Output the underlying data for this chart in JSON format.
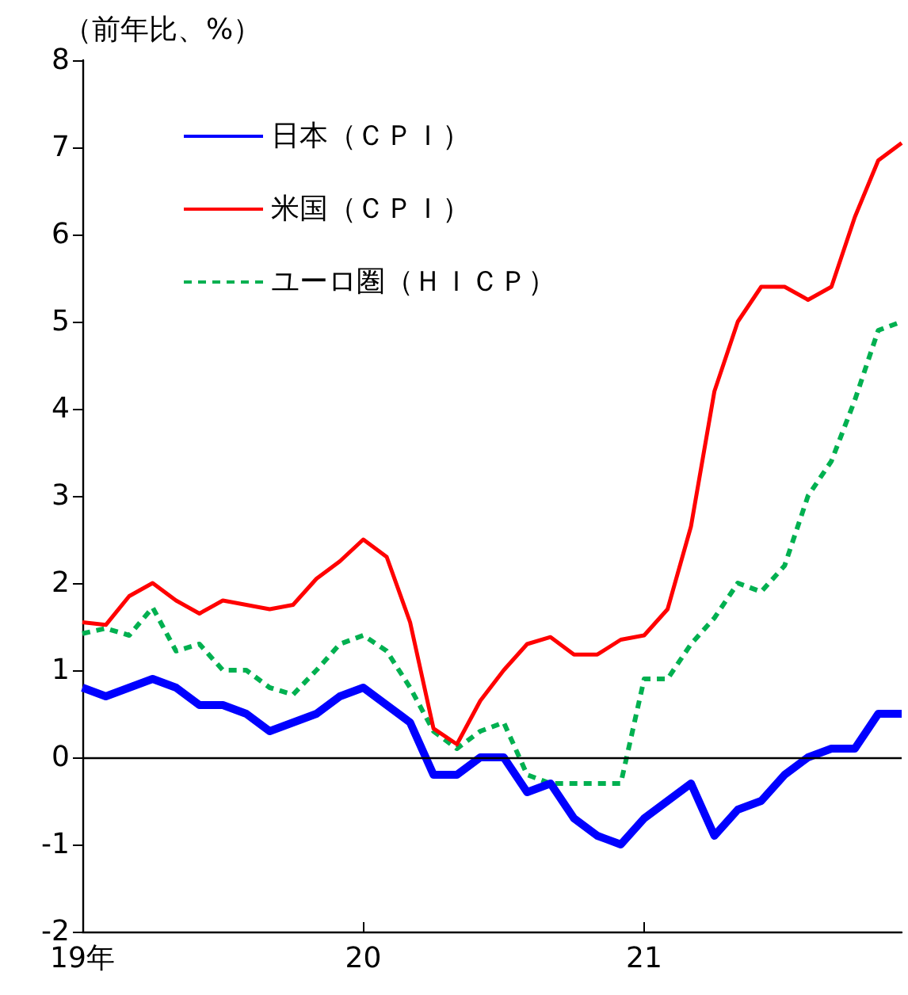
{
  "chart_data": {
    "type": "line",
    "ylabel": "（前年比、%）",
    "categories": [
      "19年",
      null,
      null,
      null,
      null,
      null,
      null,
      null,
      null,
      null,
      null,
      null,
      "20",
      null,
      null,
      null,
      null,
      null,
      null,
      null,
      null,
      null,
      null,
      null,
      "21",
      null,
      null,
      null,
      null,
      null,
      null,
      null,
      null,
      null,
      null,
      null
    ],
    "series": [
      {
        "name": "日本（ＣＰＩ）",
        "color": "#0000ff",
        "line_style": "solid",
        "values": [
          0.8,
          0.7,
          0.8,
          0.9,
          0.8,
          0.6,
          0.6,
          0.5,
          0.3,
          0.4,
          0.5,
          0.7,
          0.8,
          0.6,
          0.4,
          -0.2,
          -0.2,
          0.0,
          0.0,
          -0.4,
          -0.3,
          -0.7,
          -0.9,
          -1.0,
          -0.7,
          -0.5,
          -0.3,
          -0.9,
          -0.6,
          -0.5,
          -0.2,
          0.0,
          0.1,
          0.1,
          0.5,
          0.5
        ]
      },
      {
        "name": "米国（ＣＰＩ）",
        "color": "#ff0000",
        "line_style": "solid",
        "values": [
          1.55,
          1.52,
          1.85,
          2.0,
          1.8,
          1.65,
          1.8,
          1.75,
          1.7,
          1.75,
          2.05,
          2.25,
          2.5,
          2.3,
          1.55,
          0.33,
          0.15,
          0.65,
          1.0,
          1.3,
          1.38,
          1.18,
          1.18,
          1.35,
          1.4,
          1.7,
          2.65,
          4.2,
          5.0,
          5.4,
          5.4,
          5.25,
          5.4,
          6.2,
          6.85,
          7.05
        ]
      },
      {
        "name": "ユーロ圏（ＨＩＣＰ）",
        "color": "#00b050",
        "line_style": "dashed",
        "values": [
          1.42,
          1.48,
          1.4,
          1.72,
          1.22,
          1.3,
          1.0,
          1.0,
          0.8,
          0.72,
          1.0,
          1.3,
          1.4,
          1.22,
          0.8,
          0.3,
          0.1,
          0.3,
          0.4,
          -0.2,
          -0.3,
          -0.3,
          -0.3,
          -0.3,
          0.9,
          0.9,
          1.3,
          1.6,
          2.0,
          1.9,
          2.2,
          3.0,
          3.4,
          4.1,
          4.9,
          5.0
        ]
      }
    ],
    "ylim": [
      -2,
      8
    ],
    "yticks": [
      -2,
      -1,
      0,
      1,
      2,
      3,
      4,
      5,
      6,
      7,
      8
    ],
    "ref_lines": [
      {
        "axis": "y",
        "value": 0,
        "color": "#000000",
        "line_style": "solid"
      }
    ],
    "grid": false,
    "legend": "top left",
    "marker": "none"
  }
}
